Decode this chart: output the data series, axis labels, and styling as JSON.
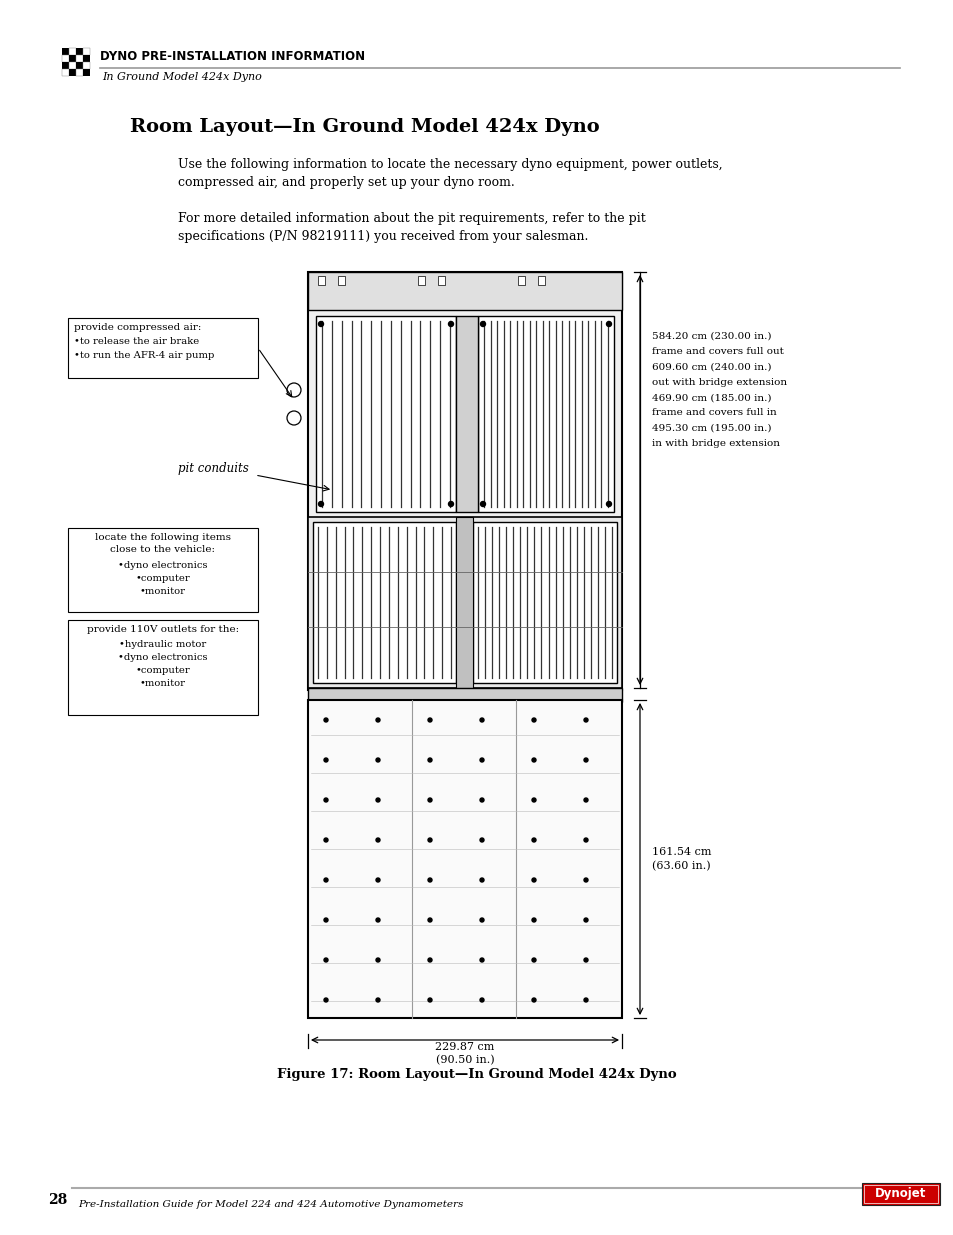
{
  "bg_color": "#ffffff",
  "header_text": "DYNO PRE-INSTALLATION INFORMATION",
  "header_subtext": "In Ground Model 424x Dyno",
  "page_title": "Room Layout—In Ground Model 424x Dyno",
  "body_text1": "Use the following information to locate the necessary dyno equipment, power outlets,\ncompressed air, and properly set up your dyno room.",
  "body_text2": "For more detailed information about the pit requirements, refer to the pit\nspecifications (P/N 98219111) you received from your salesman.",
  "label_box1_title": "provide compressed air:",
  "label_box1_lines": [
    "•to release the air brake",
    "•to run the AFR-4 air pump"
  ],
  "label_pit": "pit conduits",
  "label_box2_title": "locate the following items\nclose to the vehicle:",
  "label_box2_lines": [
    "•dyno electronics",
    "•computer",
    "•monitor"
  ],
  "label_box3_title": "provide 110V outlets for the:",
  "label_box3_lines": [
    "•hydraulic motor",
    "•dyno electronics",
    "•computer",
    "•monitor"
  ],
  "right_annotation": "584.20 cm (230.00 in.)\nframe and covers full out\n609.60 cm (240.00 in.)\nout with bridge extension\n469.90 cm (185.00 in.)\nframe and covers full in\n495.30 cm (195.00 in.)\nin with bridge extension",
  "bottom_right_annotation": "161.54 cm\n(63.60 in.)",
  "bottom_annotation": "229.87 cm\n(90.50 in.)",
  "figure_caption": "Figure 17: Room Layout—In Ground Model 424x Dyno",
  "page_number": "28",
  "footer_text": "Pre-Installation Guide for Model 224 and 424 Automotive Dynamometers"
}
